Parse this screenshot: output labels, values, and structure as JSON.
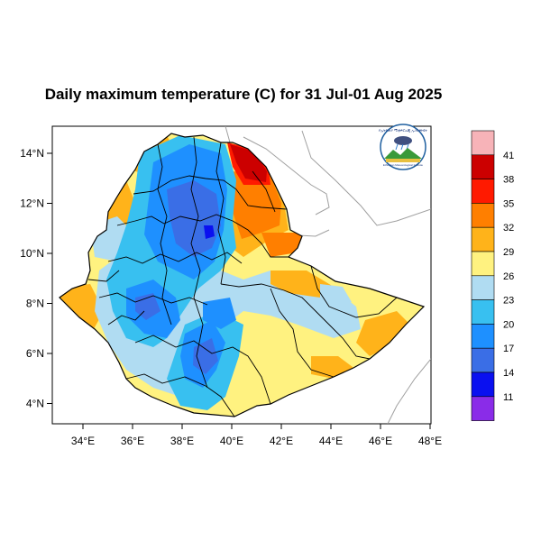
{
  "title": "Daily maximum temperature (C) for 31 Jul-01 Aug 2025",
  "x_ticks": [
    "34°E",
    "36°E",
    "38°E",
    "40°E",
    "42°E",
    "44°E",
    "46°E",
    "48°E"
  ],
  "y_ticks": [
    "14°N",
    "12°N",
    "10°N",
    "8°N",
    "6°N",
    "4°N"
  ],
  "colorbar": {
    "labels": [
      "41",
      "38",
      "35",
      "32",
      "29",
      "26",
      "23",
      "20",
      "17",
      "14",
      "11"
    ],
    "colors": [
      "#f7b3b8",
      "#cc0000",
      "#ff1a00",
      "#ff7f00",
      "#ffb31a",
      "#fff280",
      "#b0dcf2",
      "#38c0f0",
      "#1e90ff",
      "#3a6ee6",
      "#0a10f0",
      "#8a2ce8"
    ]
  },
  "palette": {
    "hot_dark": "#cc0000",
    "hot": "#ff1a00",
    "orange": "#ff7f00",
    "amber": "#ffb31a",
    "yellow": "#fff280",
    "pale_blue": "#b0dcf2",
    "cyan": "#38c0f0",
    "blue": "#1e90ff",
    "mid_blue": "#3a6ee6",
    "deep_blue": "#0a10f0"
  },
  "logo": {
    "text": "የኢትዮጵያ ሚቲዎሮሎጂ ኢንስቲትዩት",
    "subtext": "Ethiopian Meteorological Institute"
  }
}
